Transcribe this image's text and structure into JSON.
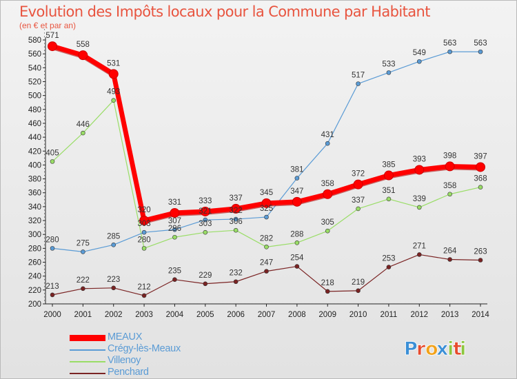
{
  "title": "Evolution des Impôts locaux pour la Commune par Habitant",
  "subtitle": "(en € et par an)",
  "brand": {
    "text": "Proxiti",
    "letters": [
      "P",
      "r",
      "o",
      "x",
      "i",
      "t",
      "i"
    ],
    "colors": [
      "#3b8fd6",
      "#e64b2e",
      "#f2a21b",
      "#3b8fd6",
      "#8cc63f",
      "#e64b2e",
      "#8cc63f"
    ]
  },
  "chart_data": {
    "type": "line",
    "title": "Evolution des Impôts locaux pour la Commune par Habitant",
    "subtitle": "(en € et par an)",
    "xlabel": "",
    "ylabel": "",
    "x": [
      "2000",
      "2001",
      "2002",
      "2003",
      "2004",
      "2005",
      "2006",
      "2007",
      "2008",
      "2009",
      "2010",
      "2011",
      "2012",
      "2013",
      "2014"
    ],
    "ylim": [
      200,
      580
    ],
    "yticks": [
      "200",
      "220",
      "240",
      "260",
      "280",
      "300",
      "320",
      "340",
      "360",
      "380",
      "400",
      "420",
      "440",
      "460",
      "480",
      "500",
      "520",
      "540",
      "560",
      "580"
    ],
    "grid": false,
    "legend_position": "bottom-left",
    "series": [
      {
        "name": "MEAUX",
        "color": "#ff0000",
        "values": [
          571,
          558,
          531,
          320,
          331,
          333,
          337,
          345,
          347,
          358,
          372,
          385,
          393,
          398,
          397
        ],
        "labels": [
          "571",
          "558",
          "531",
          "320",
          "331",
          "333",
          "337",
          "345",
          "347",
          "358",
          "372",
          "385",
          "393",
          "398",
          "397"
        ]
      },
      {
        "name": "Crégy-lès-Meaux",
        "color": "#5a9bd5",
        "values": [
          280,
          275,
          285,
          303,
          307,
          321,
          322,
          325,
          381,
          431,
          517,
          533,
          549,
          563,
          563
        ],
        "labels": [
          "280",
          "275",
          "285",
          "303",
          "307",
          "321",
          "322",
          "325",
          "381",
          "431",
          "517",
          "533",
          "549",
          "563",
          "563"
        ]
      },
      {
        "name": "Villenoy",
        "color": "#99dd66",
        "values": [
          405,
          446,
          493,
          280,
          296,
          303,
          306,
          282,
          288,
          305,
          337,
          351,
          339,
          358,
          368
        ],
        "labels": [
          "405",
          "446",
          "493",
          "280",
          "296",
          "303",
          "306",
          "282",
          "288",
          "305",
          "337",
          "351",
          "339",
          "358",
          "368"
        ]
      },
      {
        "name": "Penchard",
        "color": "#7a2323",
        "values": [
          213,
          222,
          223,
          212,
          235,
          229,
          232,
          247,
          254,
          218,
          219,
          253,
          271,
          264,
          263
        ],
        "labels": [
          "213",
          "222",
          "223",
          "212",
          "235",
          "229",
          "232",
          "247",
          "254",
          "218",
          "219",
          "253",
          "271",
          "264",
          "263"
        ]
      }
    ]
  }
}
